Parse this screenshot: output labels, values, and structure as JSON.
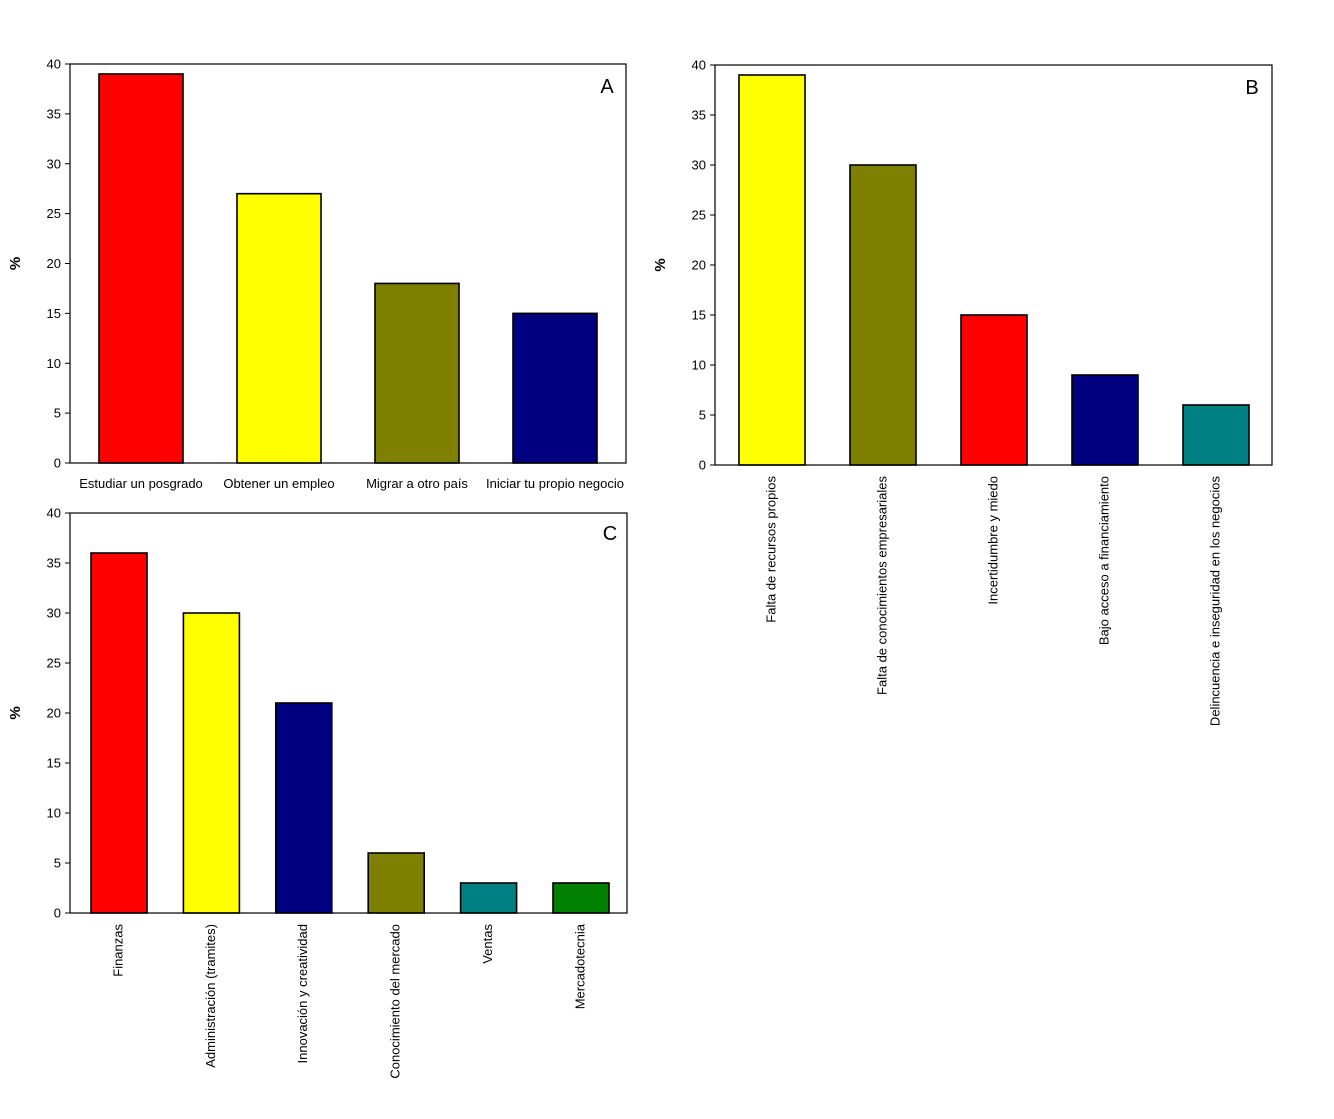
{
  "chart_data": [
    {
      "type": "bar",
      "panel": "A",
      "title": "",
      "xlabel": "",
      "ylabel": "%",
      "ylim": [
        0,
        40
      ],
      "yticks": [
        0,
        5,
        10,
        15,
        20,
        25,
        30,
        35,
        40
      ],
      "categories": [
        "Estudiar un posgrado",
        "Obtener un empleo",
        "Migrar a otro país",
        "Iniciar tu propio negocio"
      ],
      "values": [
        39,
        27,
        18,
        15
      ],
      "colors": [
        "#ff0000",
        "#ffff00",
        "#808000",
        "#000080"
      ],
      "label_orientation": "horizontal"
    },
    {
      "type": "bar",
      "panel": "B",
      "title": "",
      "xlabel": "",
      "ylabel": "%",
      "ylim": [
        0,
        40
      ],
      "yticks": [
        0,
        5,
        10,
        15,
        20,
        25,
        30,
        35,
        40
      ],
      "categories": [
        "Falta de recursos propios",
        "Falta de conocimientos empresariales",
        "Incertidumbre y miedo",
        "Bajo acceso a financiamiento",
        "Delincuencia e inseguridad en los negocios"
      ],
      "values": [
        39,
        30,
        15,
        9,
        6
      ],
      "colors": [
        "#ffff00",
        "#808000",
        "#ff0000",
        "#000080",
        "#008080"
      ],
      "label_orientation": "vertical"
    },
    {
      "type": "bar",
      "panel": "C",
      "title": "",
      "xlabel": "",
      "ylabel": "%",
      "ylim": [
        0,
        40
      ],
      "yticks": [
        0,
        5,
        10,
        15,
        20,
        25,
        30,
        35,
        40
      ],
      "categories": [
        "Finanzas",
        "Administración (tramites)",
        "Innovación y creatividad",
        "Conocimiento del mercado",
        "Ventas",
        "Mercadotecnia"
      ],
      "values": [
        36,
        30,
        21,
        6,
        3,
        3
      ],
      "colors": [
        "#ff0000",
        "#ffff00",
        "#000080",
        "#808000",
        "#008080",
        "#008000"
      ],
      "label_orientation": "vertical"
    }
  ]
}
